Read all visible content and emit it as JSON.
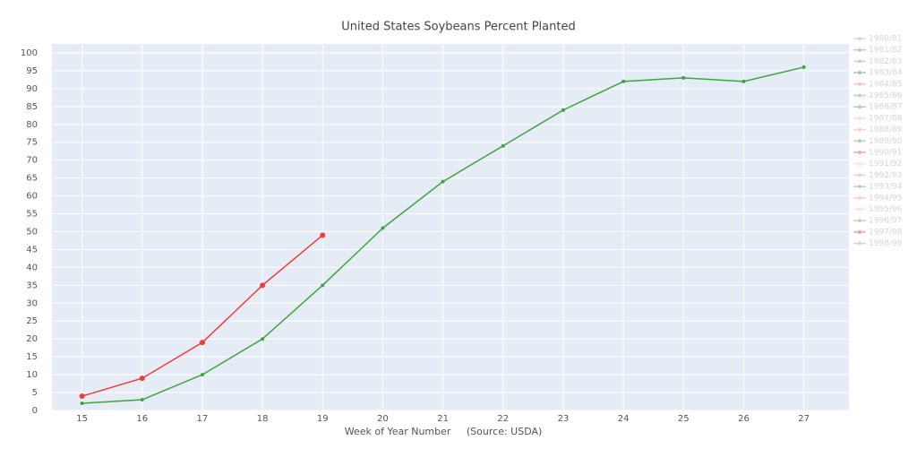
{
  "chart_data": {
    "type": "line",
    "title": "United States Soybeans Percent Planted",
    "x_label": "Week of Year Number     (Source: USDA)",
    "x": [
      15,
      16,
      17,
      18,
      19,
      20,
      21,
      22,
      23,
      24,
      25,
      26,
      27
    ],
    "series": [
      {
        "color": "#ef3b3b",
        "values": [
          4,
          9,
          19,
          35,
          49,
          null,
          null,
          null,
          null,
          null,
          null,
          null,
          null
        ]
      },
      {
        "color": "#3ea53e",
        "values": [
          2,
          3,
          10,
          20,
          35,
          51,
          64,
          74,
          84,
          92,
          93,
          92,
          96
        ]
      }
    ],
    "legend": [
      {
        "name": "1980/81",
        "color": "#9fb3c8"
      },
      {
        "name": "1981/82",
        "color": "#9a7fb0"
      },
      {
        "name": "1982/83",
        "color": "#9aa0a8"
      },
      {
        "name": "1983/84",
        "color": "#6b7a8f"
      },
      {
        "name": "1984/85",
        "color": "#f08a7a"
      },
      {
        "name": "1985/86",
        "color": "#6fb86f"
      },
      {
        "name": "1986/87",
        "color": "#4fae4f"
      },
      {
        "name": "1987/88",
        "color": "#f4b8c8"
      },
      {
        "name": "1988/89",
        "color": "#f3a79a"
      },
      {
        "name": "1989/90",
        "color": "#5fb35f"
      },
      {
        "name": "1990/91",
        "color": "#e85a5a"
      },
      {
        "name": "1991/92",
        "color": "#f7c6d2"
      },
      {
        "name": "1992/93",
        "color": "#e79ab5"
      },
      {
        "name": "1993/94",
        "color": "#7f9f7f"
      },
      {
        "name": "1994/95",
        "color": "#f49a9a"
      },
      {
        "name": "1995/96",
        "color": "#f5c0cc"
      },
      {
        "name": "1996/97",
        "color": "#8da88d"
      },
      {
        "name": "1997/98",
        "color": "#e04848"
      },
      {
        "name": "1998/99",
        "color": "#a9a3c9"
      }
    ],
    "xlim": [
      14.5,
      27.75
    ],
    "ylim": [
      0,
      102.5
    ],
    "xticks": [
      15,
      16,
      17,
      18,
      19,
      20,
      21,
      22,
      23,
      24,
      25,
      26,
      27
    ],
    "yticks": [
      0,
      5,
      10,
      15,
      20,
      25,
      30,
      35,
      40,
      45,
      50,
      55,
      60,
      65,
      70,
      75,
      80,
      85,
      90,
      95,
      100
    ],
    "grid": true
  }
}
